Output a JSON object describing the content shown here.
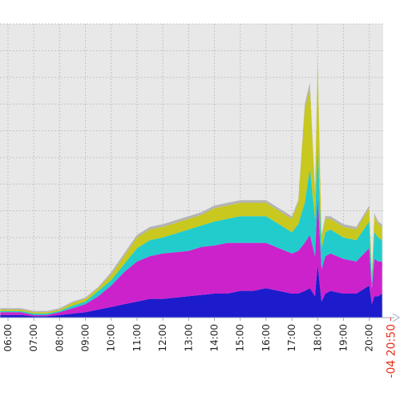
{
  "chart_data": {
    "type": "stacked-area",
    "x": [
      5.7,
      6,
      6.5,
      7,
      7.5,
      8,
      8.5,
      9,
      9.5,
      10,
      10.5,
      11,
      11.5,
      12,
      12.5,
      13,
      13.5,
      14,
      14.5,
      15,
      15.5,
      16,
      16.5,
      17,
      17.25,
      17.5,
      17.7,
      17.9,
      18,
      18.15,
      18.3,
      18.5,
      19,
      19.5,
      20,
      20.1,
      20.2,
      20.35,
      20.5
    ],
    "xlim": [
      5.69,
      20.85
    ],
    "xticks": [
      {
        "value": 6,
        "label": "06:00"
      },
      {
        "value": 7,
        "label": "07:00"
      },
      {
        "value": 8,
        "label": "08:00"
      },
      {
        "value": 9,
        "label": "09:00"
      },
      {
        "value": 10,
        "label": "10:00"
      },
      {
        "value": 11,
        "label": "11:00"
      },
      {
        "value": 12,
        "label": "12:00"
      },
      {
        "value": 13,
        "label": "13:00"
      },
      {
        "value": 14,
        "label": "14:00"
      },
      {
        "value": 15,
        "label": "15:00"
      },
      {
        "value": 16,
        "label": "16:00"
      },
      {
        "value": 17,
        "label": "17:00"
      },
      {
        "value": 18,
        "label": "18:00"
      },
      {
        "value": 19,
        "label": "19:00"
      },
      {
        "value": 20,
        "label": "20:00"
      }
    ],
    "x_end_label": {
      "value": 20.8333,
      "label": "-04 20:50",
      "color": "#e8301c"
    },
    "ylim": [
      0,
      110
    ],
    "ygrid": [
      10,
      20,
      30,
      40,
      50,
      60,
      70,
      80,
      90,
      100,
      110
    ],
    "grid": true,
    "series": [
      {
        "color": "#1c1ccc",
        "values": [
          1,
          1,
          1,
          0.5,
          0.5,
          1,
          1.5,
          2,
          3,
          4,
          5,
          6,
          7,
          7,
          7.5,
          8,
          8.5,
          9,
          9,
          10,
          10,
          11,
          10,
          9,
          9,
          10,
          11,
          8,
          20,
          6,
          9,
          10,
          9,
          9,
          12,
          5,
          8,
          8,
          9
        ]
      },
      {
        "color": "#cc22cc",
        "values": [
          1,
          1,
          1,
          0.5,
          0.5,
          1,
          2,
          3,
          5,
          8,
          12,
          15,
          16,
          17,
          17,
          17,
          18,
          18,
          19,
          18,
          18,
          17,
          16,
          15,
          16,
          18,
          20,
          15,
          25,
          12,
          14,
          14,
          13,
          12,
          14,
          6,
          14,
          13,
          12
        ]
      },
      {
        "color": "#22cccc",
        "values": [
          0.5,
          0.5,
          0.5,
          0.5,
          0.5,
          0.5,
          1,
          1,
          2,
          2,
          3,
          5,
          6,
          6,
          7,
          8,
          8,
          9,
          9,
          10,
          10,
          10,
          9,
          8,
          10,
          15,
          25,
          14,
          20,
          8,
          9,
          9,
          8,
          8,
          10,
          3,
          10,
          9,
          8
        ]
      },
      {
        "color": "#c8c81e",
        "values": [
          0.5,
          0.5,
          0.5,
          0.5,
          0.5,
          0.5,
          1,
          1,
          1,
          2,
          3,
          4,
          4,
          4,
          4,
          4,
          4,
          5,
          5,
          5,
          5,
          5,
          5,
          5,
          8,
          35,
          30,
          10,
          30,
          4,
          5,
          4,
          4,
          4,
          5,
          2,
          6,
          5,
          5
        ]
      },
      {
        "color": "#b4b4b4",
        "values": [
          0.5,
          0.5,
          0.5,
          0.5,
          0.5,
          0.5,
          0.5,
          0.5,
          0.5,
          1,
          1,
          1,
          1,
          1,
          1,
          1,
          1,
          1,
          1,
          1,
          1,
          1,
          1,
          1,
          1,
          2,
          2,
          1,
          2,
          1,
          1,
          1,
          1,
          1,
          1,
          1,
          1,
          1,
          1
        ]
      }
    ]
  }
}
